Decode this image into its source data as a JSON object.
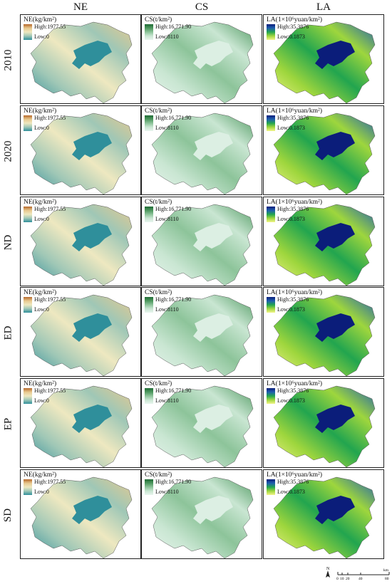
{
  "columns": [
    "NE",
    "CS",
    "LA"
  ],
  "rows": [
    "2010",
    "2020",
    "ND",
    "ED",
    "EP",
    "SD"
  ],
  "legends": {
    "NE": {
      "title": "NE(kg/km²)",
      "high": "High:1977.55",
      "low": "Low:0",
      "ramp": [
        "#b5672a",
        "#e8c98f",
        "#eee8c0",
        "#9fc7b6",
        "#2f8f9b"
      ]
    },
    "CS": {
      "title": "CS(t/km²)",
      "high": "High:16,771.90",
      "low": "Low:8110",
      "ramp": [
        "#1f6b35",
        "#4f9960",
        "#8dc49a",
        "#c9e6d2",
        "#e8f5ee"
      ]
    },
    "LA": {
      "title": "LA(1×10⁶yuan/km²)",
      "high": "High:35.3876",
      "low": "Low:0.1873",
      "ramp": [
        "#0b1d7a",
        "#1f5fb0",
        "#22a54f",
        "#9ed63d",
        "#f2f48a"
      ]
    }
  },
  "scale_bar": {
    "north": "N",
    "ticks": [
      "0",
      "10",
      "20",
      "40",
      "80"
    ],
    "unit": "km"
  }
}
